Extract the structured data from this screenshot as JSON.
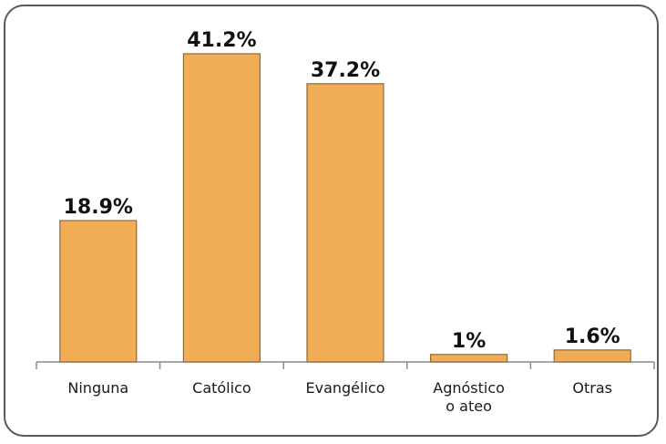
{
  "chart_data": {
    "type": "bar",
    "categories": [
      [
        "Ninguna"
      ],
      [
        "Católico"
      ],
      [
        "Evangélico"
      ],
      [
        "Agnóstico",
        "o ateo"
      ],
      [
        "Otras"
      ]
    ],
    "values": [
      18.9,
      41.2,
      37.2,
      1,
      1.6
    ],
    "value_labels": [
      "18.9%",
      "41.2%",
      "37.2%",
      "1%",
      "1.6%"
    ],
    "title": "",
    "xlabel": "",
    "ylabel": "",
    "ylim": [
      0,
      41.2
    ],
    "grid": false,
    "legend": "none",
    "bar_color": "#F0AD55",
    "bar_edge_color": "#8C6A3A",
    "axis_color": "#8C8C8C"
  }
}
